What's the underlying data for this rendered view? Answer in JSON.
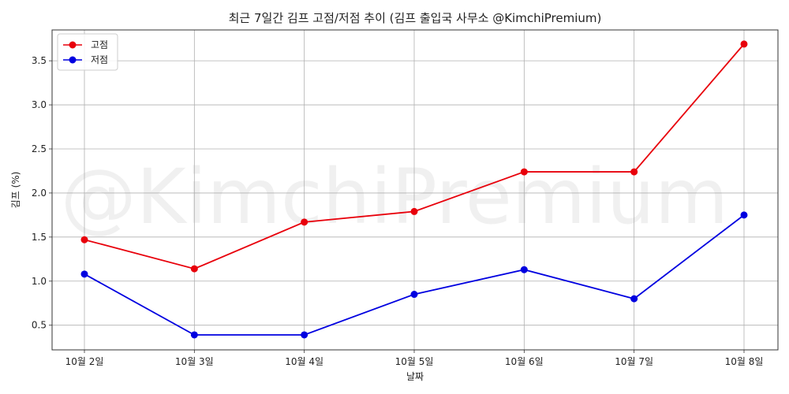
{
  "chart_data": {
    "type": "line",
    "title": "최근 7일간 김프 고점/저점 추이 (김프 출입국 사무소 @KimchiPremium)",
    "xlabel": "날짜",
    "ylabel": "김프 (%)",
    "watermark": "@KimchiPremium",
    "categories": [
      "10월 2일",
      "10월 3일",
      "10월 4일",
      "10월 5일",
      "10월 6일",
      "10월 7일",
      "10월 8일"
    ],
    "series": [
      {
        "name": "고점",
        "color": "#e8000b",
        "values": [
          1.47,
          1.14,
          1.67,
          1.79,
          2.24,
          2.24,
          3.69
        ]
      },
      {
        "name": "저점",
        "color": "#0000e0",
        "values": [
          1.08,
          0.39,
          0.39,
          0.85,
          1.13,
          0.8,
          1.75
        ]
      }
    ],
    "ylim": [
      0.22,
      3.85
    ],
    "yticks": [
      "0.5",
      "1.0",
      "1.5",
      "2.0",
      "2.5",
      "3.0",
      "3.5"
    ],
    "grid": true,
    "legend_position": "top-left"
  }
}
